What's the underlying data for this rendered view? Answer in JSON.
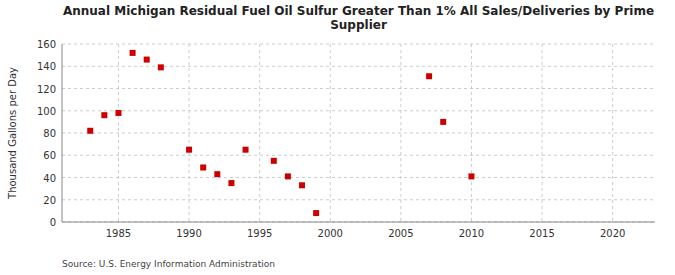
{
  "chart_data": {
    "type": "scatter",
    "title": "Annual Michigan Residual Fuel Oil Sulfur Greater Than 1% All Sales/Deliveries by Prime\nSupplier",
    "ylabel": "Thousand Gallons per Day",
    "annotation": "Source: U.S. Energy Information Administration",
    "x": [
      1983,
      1984,
      1985,
      1986,
      1987,
      1988,
      1990,
      1991,
      1992,
      1993,
      1994,
      1996,
      1997,
      1998,
      1999,
      2007,
      2008,
      2010
    ],
    "values": [
      82,
      96,
      98,
      152,
      146,
      139,
      65,
      49,
      43,
      35,
      65,
      55,
      41,
      33,
      8,
      131,
      90,
      41
    ],
    "color": "#cc0000",
    "marker": "square",
    "xlim": [
      1981,
      2023
    ],
    "ylim": [
      0,
      160
    ],
    "xticks": [
      1985,
      1990,
      1995,
      2000,
      2005,
      2010,
      2015,
      2020
    ],
    "yticks": [
      0,
      20,
      40,
      60,
      80,
      100,
      120,
      140,
      160
    ],
    "grid": true
  }
}
